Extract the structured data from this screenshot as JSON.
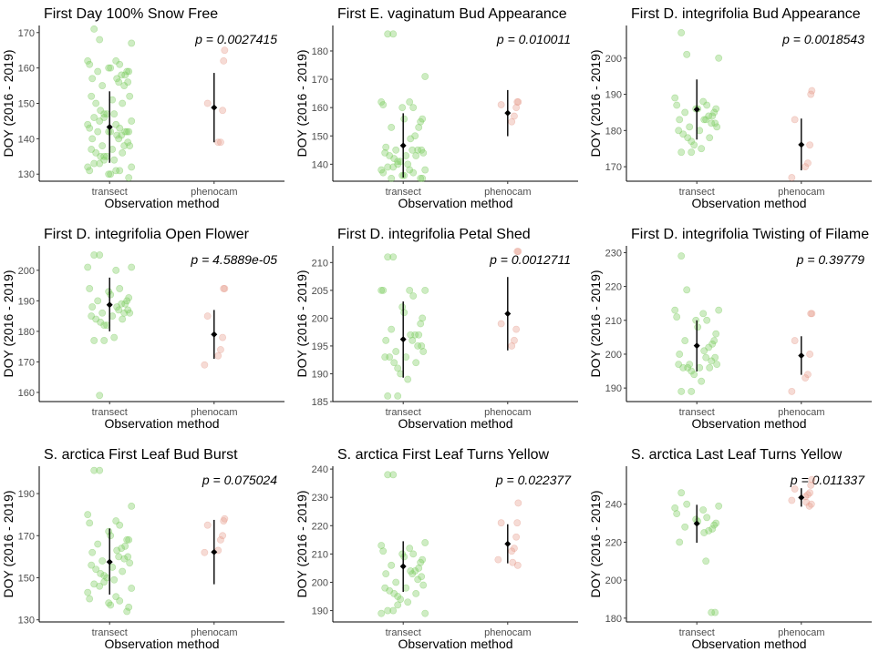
{
  "x_axis_label": "Observation method",
  "y_axis_label": "DOY (2016 - 2019)",
  "categories": [
    "transect",
    "phenocam"
  ],
  "colors": {
    "transect": "#7dce62",
    "phenocam": "#e8a091",
    "summary": "#000000"
  },
  "chart_data": [
    {
      "type": "scatter",
      "title": "First Day 100% Snow Free",
      "pvalue": "p = 0.0027415",
      "ylim": [
        128,
        172
      ],
      "yticks": [
        130,
        140,
        150,
        160,
        170
      ],
      "series": [
        {
          "category": "transect",
          "values": [
            171,
            168,
            167,
            162,
            162,
            161,
            161,
            160,
            160,
            159,
            159,
            159,
            158,
            158,
            157,
            157,
            156,
            156,
            155,
            155,
            152,
            152,
            151,
            150,
            150,
            148,
            147,
            147,
            147,
            146,
            146,
            145,
            145,
            144,
            144,
            143,
            143,
            142,
            142,
            142,
            142,
            142,
            142,
            141,
            141,
            140,
            140,
            139,
            138,
            138,
            138,
            137,
            137,
            136,
            136,
            135,
            135,
            135,
            134,
            134,
            133,
            133,
            132,
            132,
            131,
            131,
            131,
            130,
            130,
            129
          ],
          "mean": 143.3,
          "lower": 133.2,
          "upper": 153.4
        },
        {
          "category": "phenocam",
          "values": [
            165,
            162,
            150,
            148,
            139,
            139
          ],
          "mean": 148.8,
          "lower": 139.0,
          "upper": 158.6
        }
      ]
    },
    {
      "type": "scatter",
      "title": "First E. vaginatum Bud Appearance",
      "pvalue": "p = 0.010011",
      "ylim": [
        134,
        189
      ],
      "yticks": [
        140,
        150,
        160,
        170,
        180
      ],
      "series": [
        {
          "category": "transect",
          "values": [
            186,
            186,
            171,
            162,
            162,
            161,
            160,
            160,
            156,
            156,
            155,
            153,
            153,
            150,
            149,
            146,
            145,
            145,
            145,
            145,
            144,
            144,
            143,
            143,
            143,
            142,
            141,
            141,
            140,
            140,
            139,
            139,
            138,
            138,
            138,
            137,
            137,
            136,
            136,
            135,
            135,
            135
          ],
          "mean": 146.6,
          "lower": 135.3,
          "upper": 158.0
        },
        {
          "category": "phenocam",
          "values": [
            162,
            162,
            161,
            160,
            157,
            155
          ],
          "mean": 158.1,
          "lower": 149.9,
          "upper": 166.2
        }
      ]
    },
    {
      "type": "scatter",
      "title": "First D. integrifolia Bud Appearance",
      "pvalue": "p = 0.0018543",
      "ylim": [
        166,
        209
      ],
      "yticks": [
        170,
        180,
        190,
        200
      ],
      "series": [
        {
          "category": "transect",
          "values": [
            207,
            201,
            200,
            189,
            188,
            187,
            187,
            186,
            186,
            186,
            185,
            185,
            184,
            184,
            183,
            183,
            183,
            182,
            182,
            181,
            181,
            180,
            180,
            179,
            178,
            178,
            177,
            176,
            175,
            174,
            174
          ],
          "mean": 185.8,
          "lower": 177.5,
          "upper": 194.1
        },
        {
          "category": "phenocam",
          "values": [
            191,
            190,
            183,
            176,
            171,
            170,
            167
          ],
          "mean": 176.1,
          "lower": 169.0,
          "upper": 183.3
        }
      ]
    },
    {
      "type": "scatter",
      "title": "First D. integrifolia Open Flower",
      "pvalue": "p = 4.5889e-05",
      "ylim": [
        157,
        208
      ],
      "yticks": [
        160,
        170,
        180,
        190,
        200
      ],
      "series": [
        {
          "category": "transect",
          "values": [
            205,
            205,
            201,
            201,
            200,
            194,
            194,
            193,
            192,
            191,
            190,
            190,
            189,
            189,
            188,
            188,
            187,
            187,
            186,
            186,
            186,
            185,
            185,
            184,
            184,
            183,
            182,
            182,
            178,
            177,
            177,
            159
          ],
          "mean": 188.7,
          "lower": 180.0,
          "upper": 197.6
        },
        {
          "category": "phenocam",
          "values": [
            194,
            194,
            185,
            178,
            174,
            172,
            169
          ],
          "mean": 179.0,
          "lower": 171.0,
          "upper": 187.0
        }
      ]
    },
    {
      "type": "scatter",
      "title": "First D. integrifolia Petal Shed",
      "pvalue": "p = 0.0012711",
      "ylim": [
        185,
        213
      ],
      "yticks": [
        185,
        190,
        195,
        200,
        205,
        210
      ],
      "series": [
        {
          "category": "transect",
          "values": [
            211,
            211,
            205,
            205,
            205,
            205,
            204,
            202,
            201,
            200,
            199,
            198,
            197,
            197,
            197,
            196,
            196,
            195,
            195,
            194,
            194,
            193,
            193,
            193,
            192,
            192,
            191,
            190,
            189,
            186,
            186
          ],
          "mean": 196.2,
          "lower": 189.3,
          "upper": 203.0
        },
        {
          "category": "phenocam",
          "values": [
            212,
            212,
            199,
            198,
            196,
            195
          ],
          "mean": 200.8,
          "lower": 194.2,
          "upper": 207.4
        }
      ]
    },
    {
      "type": "scatter",
      "title": "First D. integrifolia Twisting of Filame",
      "pvalue": "p = 0.39779",
      "ylim": [
        186,
        232
      ],
      "yticks": [
        190,
        200,
        210,
        220,
        230
      ],
      "series": [
        {
          "category": "transect",
          "values": [
            229,
            219,
            213,
            213,
            212,
            211,
            210,
            210,
            208,
            206,
            204,
            204,
            203,
            202,
            201,
            200,
            199,
            199,
            198,
            197,
            197,
            197,
            196,
            196,
            196,
            196,
            195,
            194,
            192,
            189,
            189
          ],
          "mean": 202.5,
          "lower": 194.9,
          "upper": 210.0
        },
        {
          "category": "phenocam",
          "values": [
            212,
            212,
            204,
            200,
            194,
            193,
            189
          ],
          "mean": 199.6,
          "lower": 193.9,
          "upper": 205.3
        }
      ]
    },
    {
      "type": "scatter",
      "title": "S. arctica First Leaf Bud Burst",
      "pvalue": "p = 0.075024",
      "ylim": [
        129,
        203
      ],
      "yticks": [
        130,
        150,
        170,
        190
      ],
      "series": [
        {
          "category": "transect",
          "values": [
            201,
            201,
            184,
            180,
            177,
            176,
            175,
            172,
            170,
            168,
            168,
            166,
            165,
            164,
            163,
            162,
            160,
            160,
            159,
            158,
            157,
            156,
            155,
            154,
            153,
            152,
            151,
            150,
            149,
            148,
            147,
            146,
            145,
            143,
            141,
            140,
            139,
            138,
            137,
            136,
            134
          ],
          "mean": 157.5,
          "lower": 142.0,
          "upper": 173.4
        },
        {
          "category": "phenocam",
          "values": [
            178,
            177,
            175,
            170,
            168,
            163,
            162
          ],
          "mean": 162.2,
          "lower": 146.9,
          "upper": 177.5
        }
      ]
    },
    {
      "type": "scatter",
      "title": "S. arctica First Leaf Turns Yellow",
      "pvalue": "p = 0.022377",
      "ylim": [
        186,
        241
      ],
      "yticks": [
        190,
        200,
        210,
        220,
        230,
        240
      ],
      "series": [
        {
          "category": "transect",
          "values": [
            238,
            238,
            214,
            213,
            212,
            211,
            210,
            210,
            209,
            208,
            207,
            206,
            205,
            204,
            204,
            203,
            203,
            202,
            201,
            200,
            199,
            198,
            198,
            197,
            196,
            196,
            195,
            194,
            193,
            192,
            190,
            190,
            189,
            189
          ],
          "mean": 205.6,
          "lower": 196.6,
          "upper": 214.5
        },
        {
          "category": "phenocam",
          "values": [
            228,
            221,
            221,
            216,
            212,
            211,
            208,
            207,
            206
          ],
          "mean": 213.6,
          "lower": 206.7,
          "upper": 220.5
        }
      ]
    },
    {
      "type": "scatter",
      "title": "S. arctica Last Leaf Turns Yellow",
      "pvalue": "p = 0.011337",
      "ylim": [
        178,
        260
      ],
      "yticks": [
        180,
        200,
        220,
        240
      ],
      "series": [
        {
          "category": "transect",
          "values": [
            246,
            240,
            239,
            238,
            237,
            235,
            233,
            232,
            231,
            230,
            229,
            228,
            227,
            226,
            225,
            220,
            210,
            183,
            183
          ],
          "mean": 229.8,
          "lower": 219.7,
          "upper": 239.7
        },
        {
          "category": "phenocam",
          "values": [
            253,
            250,
            248,
            246,
            245,
            244,
            242,
            241,
            240,
            239
          ],
          "mean": 243.5,
          "lower": 238.7,
          "upper": 248.4
        }
      ]
    }
  ]
}
